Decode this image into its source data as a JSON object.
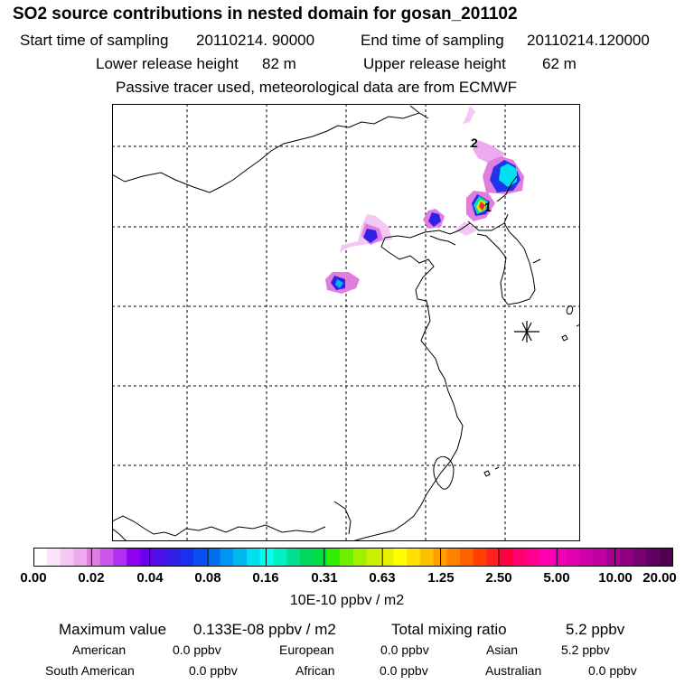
{
  "header": {
    "title": "SO2 source contributions in nested domain for gosan_201102",
    "start_label": "Start time of sampling",
    "start_value": "20110214. 90000",
    "end_label": "End time of sampling",
    "end_value": "20110214.120000",
    "lower_label": "Lower release height",
    "lower_value": "82 m",
    "upper_label": "Upper release height",
    "upper_value": "62 m",
    "note": "Passive tracer used, meteorological data are from ECMWF"
  },
  "map": {
    "markers": [
      {
        "label": "1"
      },
      {
        "label": "2"
      }
    ],
    "receptor_symbol": "asterisk",
    "colors": {
      "coast": "#000000",
      "grid": "#000000",
      "plume_core": "#ff0000"
    }
  },
  "legend": {
    "ticks": [
      "0.00",
      "0.02",
      "0.04",
      "0.08",
      "0.16",
      "0.31",
      "0.63",
      "1.25",
      "2.50",
      "5.00",
      "10.00",
      "20.00"
    ],
    "units": "10E-10 ppbv / m2",
    "colors": [
      "#ffffff",
      "#fbe4fb",
      "#f4c8f4",
      "#eeaaee",
      "#e07ee0",
      "#cc55ee",
      "#b030f0",
      "#9000f0",
      "#6a00ee",
      "#4d10e8",
      "#3020e8",
      "#1a30f0",
      "#0a50f0",
      "#0070f0",
      "#0095f0",
      "#00b8f0",
      "#00e0f0",
      "#00ffee",
      "#00f0c0",
      "#00e090",
      "#00d860",
      "#00e040",
      "#30f000",
      "#70f000",
      "#a0f000",
      "#c8f000",
      "#e8f000",
      "#ffff00",
      "#ffe000",
      "#ffc000",
      "#ffa000",
      "#ff8000",
      "#ff6000",
      "#ff4000",
      "#ff2020",
      "#ff0040",
      "#ff0070",
      "#ff0090",
      "#ff00b0",
      "#f000b8",
      "#e000b0",
      "#d000a8",
      "#c000a0",
      "#a80090",
      "#900080",
      "#780070",
      "#600060",
      "#500050"
    ]
  },
  "stats": {
    "max_label": "Maximum value",
    "max_value": "0.133E-08 ppbv / m2",
    "total_label": "Total mixing ratio",
    "total_value": "5.2 ppbv",
    "regions": [
      {
        "name": "American",
        "value": "0.0 ppbv"
      },
      {
        "name": "European",
        "value": "0.0 ppbv"
      },
      {
        "name": "Asian",
        "value": "5.2 ppbv"
      },
      {
        "name": "South American",
        "value": "0.0 ppbv"
      },
      {
        "name": "African",
        "value": "0.0 ppbv"
      },
      {
        "name": "Australian",
        "value": "0.0 ppbv"
      }
    ]
  }
}
